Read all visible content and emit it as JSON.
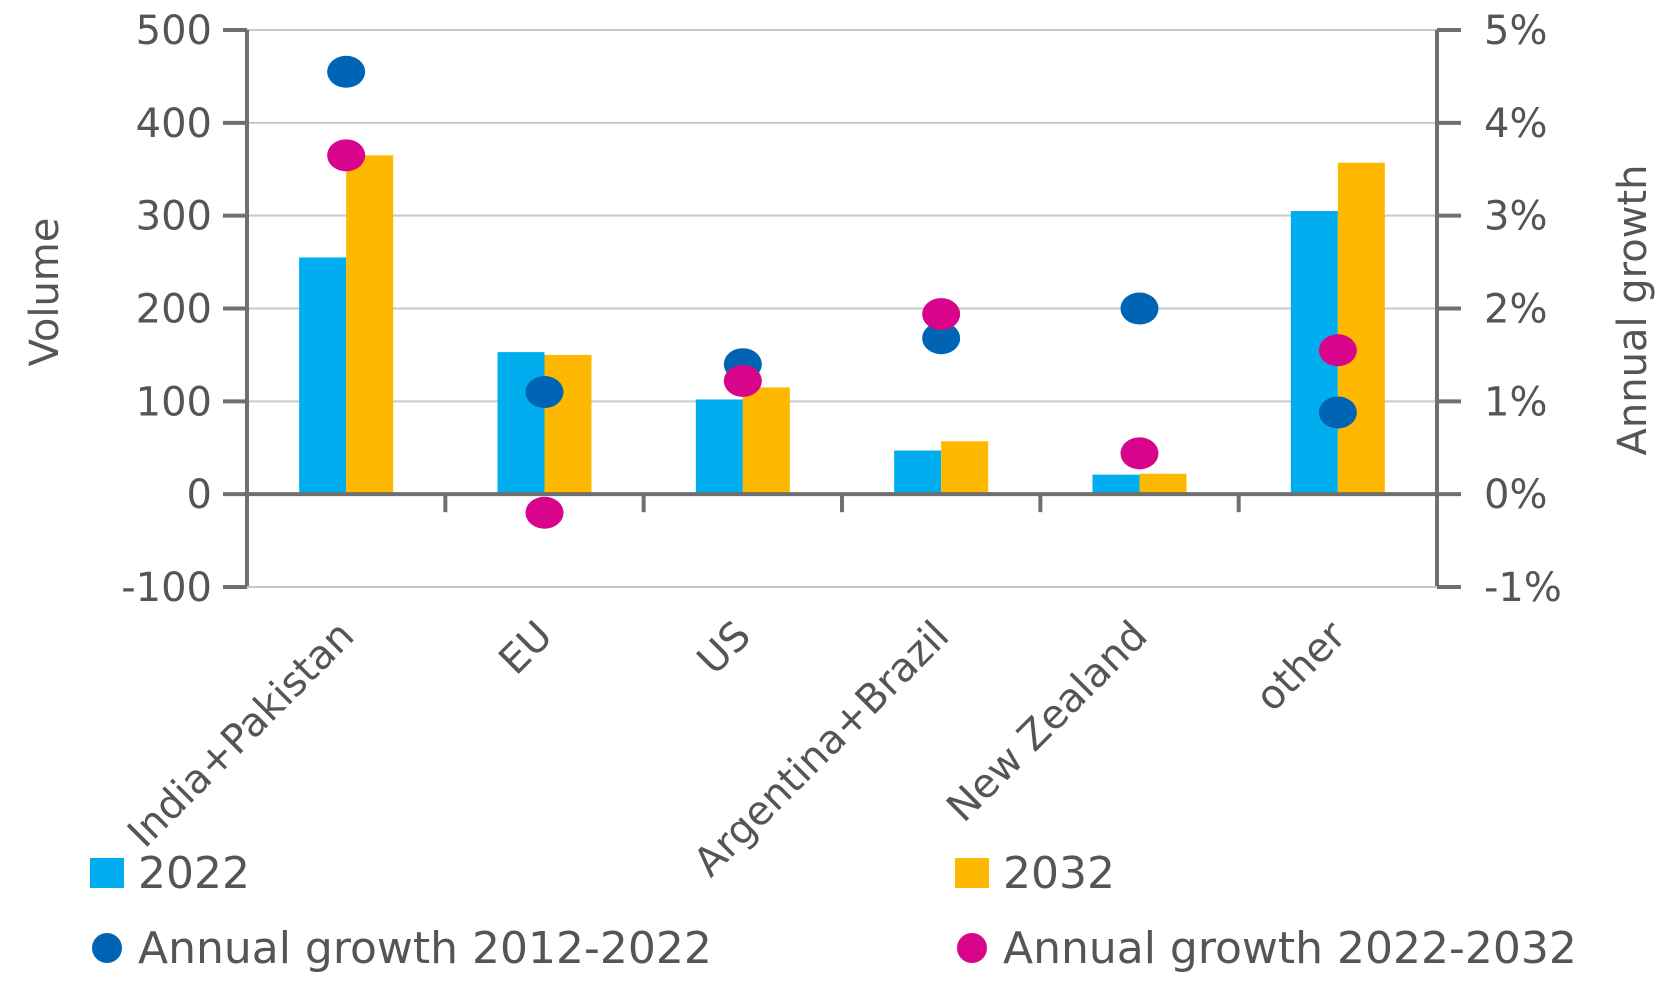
{
  "chart_data": {
    "type": "bar",
    "categories": [
      "India+Pakistan",
      "EU",
      "US",
      "Argentina+Brazil",
      "New Zealand",
      "other"
    ],
    "series": [
      {
        "name": "2022",
        "kind": "bar",
        "axis": "left",
        "color": "#00AEEF",
        "values": [
          255,
          153,
          102,
          47,
          21,
          305
        ]
      },
      {
        "name": "2032",
        "kind": "bar",
        "axis": "left",
        "color": "#FFB800",
        "values": [
          365,
          150,
          115,
          57,
          22,
          357
        ]
      },
      {
        "name": "Annual growth 2012-2022",
        "kind": "scatter",
        "axis": "right",
        "color": "#0064B4",
        "values": [
          4.55,
          1.1,
          1.4,
          1.68,
          2.0,
          0.88
        ]
      },
      {
        "name": "Annual growth 2022-2032",
        "kind": "scatter",
        "axis": "right",
        "color": "#D9048C",
        "values": [
          3.65,
          -0.2,
          1.22,
          1.94,
          0.44,
          1.55
        ]
      }
    ],
    "ylabel": "Volume",
    "y2label": "Annual growth",
    "ylim": [
      -100,
      500
    ],
    "y2lim": [
      -1,
      5
    ],
    "yticks": [
      "-100",
      "0",
      "100",
      "200",
      "300",
      "400",
      "500"
    ],
    "y2ticks": [
      "-1%",
      "0%",
      "1%",
      "2%",
      "3%",
      "4%",
      "5%"
    ],
    "grid": true,
    "legend_position": "bottom"
  }
}
